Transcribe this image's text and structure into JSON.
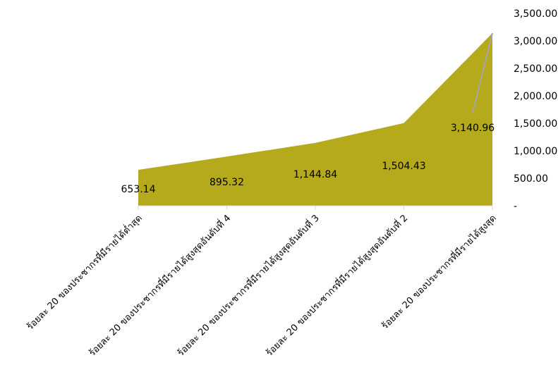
{
  "chart_data": {
    "type": "area",
    "title": "",
    "xlabel": "",
    "ylabel": "",
    "categories": [
      "ร้อยละ 20 ของประชากรที่มีรายได้ต่ำสุด",
      "ร้อยละ 20 ของประชากรที่มีรายได้สูงสุดอันดับที่ 4",
      "ร้อยละ 20 ของประชากรที่มีรายได้สูงสุดอันดับที่ 3",
      "ร้อยละ 20 ของประชากรที่มีรายได้สูงสุดอันดับที่ 2",
      "ร้อยละ 20 ของประชากรที่มีรายได้สูงสุด"
    ],
    "values": [
      653.14,
      895.32,
      1144.84,
      1504.43,
      3140.96
    ],
    "data_labels": [
      "653.14",
      "895.32",
      "1,144.84",
      "1,504.43",
      "3,140.96"
    ],
    "ylim": [
      0,
      3500
    ],
    "y_axis_position": "right",
    "y_ticks": [
      0,
      500,
      1000,
      1500,
      2000,
      2500,
      3000,
      3500
    ],
    "y_tick_labels": [
      "-",
      "500.00",
      "1,000.00",
      "1,500.00",
      "2,000.00",
      "2,500.00",
      "3,000.00",
      "3,500.00"
    ],
    "grid": false,
    "legend": "none",
    "colors": {
      "area": "#B5A91C",
      "axis": "#D9D9D9",
      "leader_line": "#A6A6A6"
    }
  }
}
